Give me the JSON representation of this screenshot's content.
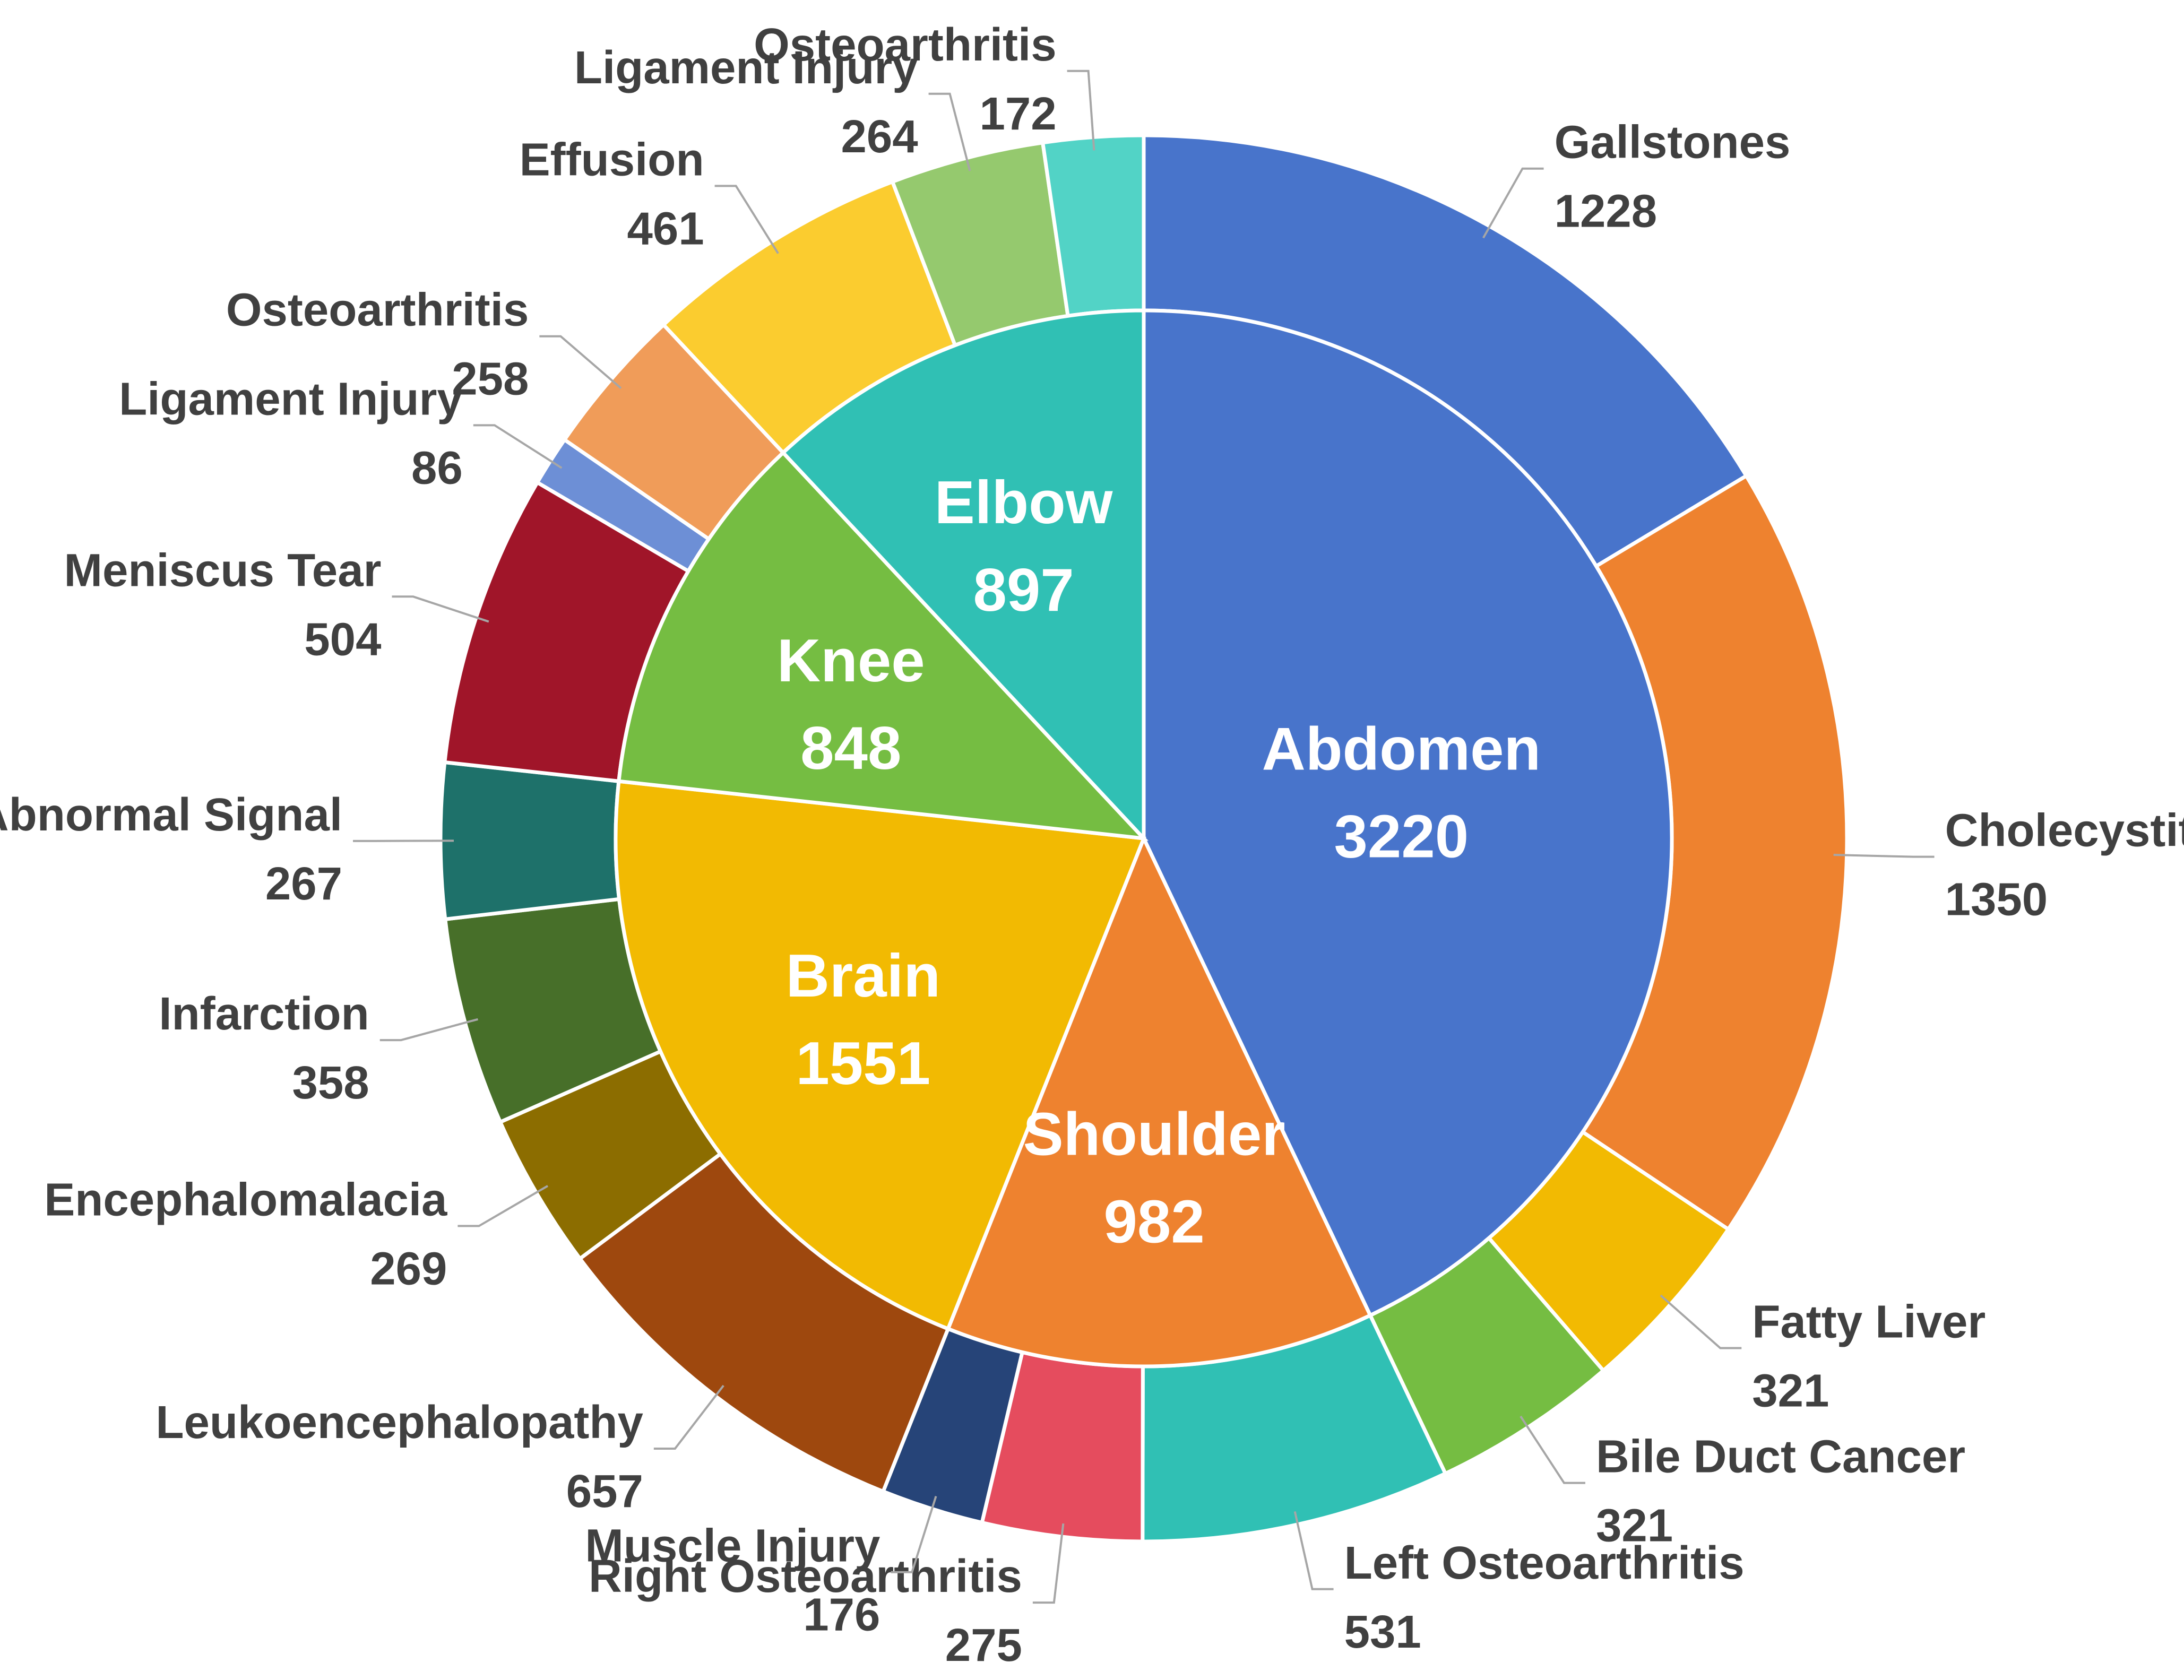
{
  "chart_data": {
    "type": "pie",
    "subtype": "nested-donut",
    "inner_ring": [
      {
        "label": "Abdomen",
        "value": 3220,
        "color": "#4874CB"
      },
      {
        "label": "Shoulder",
        "value": 982,
        "color": "#EE822F"
      },
      {
        "label": "Brain",
        "value": 1551,
        "color": "#F2BA02"
      },
      {
        "label": "Knee",
        "value": 848,
        "color": "#75BD42"
      },
      {
        "label": "Elbow",
        "value": 897,
        "color": "#30C0B4"
      }
    ],
    "outer_ring": [
      {
        "label": "Gallstones",
        "value": 1228,
        "parent": "Abdomen",
        "color": "#4874CB"
      },
      {
        "label": "Cholecystitis",
        "value": 1350,
        "parent": "Abdomen",
        "color": "#EE822F"
      },
      {
        "label": "Fatty Liver",
        "value": 321,
        "parent": "Abdomen",
        "color": "#F2BA02"
      },
      {
        "label": "Bile Duct Cancer",
        "value": 321,
        "parent": "Abdomen",
        "color": "#75BD42"
      },
      {
        "label": "Left Osteoarthritis",
        "value": 531,
        "parent": "Shoulder",
        "color": "#30C0B4"
      },
      {
        "label": "Right Osteoarthritis",
        "value": 275,
        "parent": "Shoulder",
        "color": "#E54C5E"
      },
      {
        "label": "Muscle Injury",
        "value": 176,
        "parent": "Shoulder",
        "color": "#264478"
      },
      {
        "label": "Leukoencephalopathy",
        "value": 657,
        "parent": "Brain",
        "color": "#9E480E"
      },
      {
        "label": "Encephalomalacia",
        "value": 269,
        "parent": "Brain",
        "color": "#8C6D00"
      },
      {
        "label": "Infarction",
        "value": 358,
        "parent": "Brain",
        "color": "#476F29"
      },
      {
        "label": "Abnormal Signal",
        "value": 267,
        "parent": "Brain",
        "color": "#1E716A"
      },
      {
        "label": "Meniscus Tear",
        "value": 504,
        "parent": "Knee",
        "color": "#A01529"
      },
      {
        "label": "Ligament Injury",
        "value": 86,
        "parent": "Knee",
        "color": "#6D8FD6"
      },
      {
        "label": "Osteoarthritis",
        "value": 258,
        "parent": "Knee",
        "color": "#F09C59"
      },
      {
        "label": "Effusion",
        "value": 461,
        "parent": "Elbow",
        "color": "#FBCC2F"
      },
      {
        "label": "Ligament Injury",
        "value": 264,
        "parent": "Elbow",
        "color": "#95C96E"
      },
      {
        "label": "Osteoarthritis",
        "value": 172,
        "parent": "Elbow",
        "color": "#52D3C6"
      }
    ],
    "legend": "none",
    "start_angle": "12 o'clock",
    "direction": "clockwise"
  }
}
